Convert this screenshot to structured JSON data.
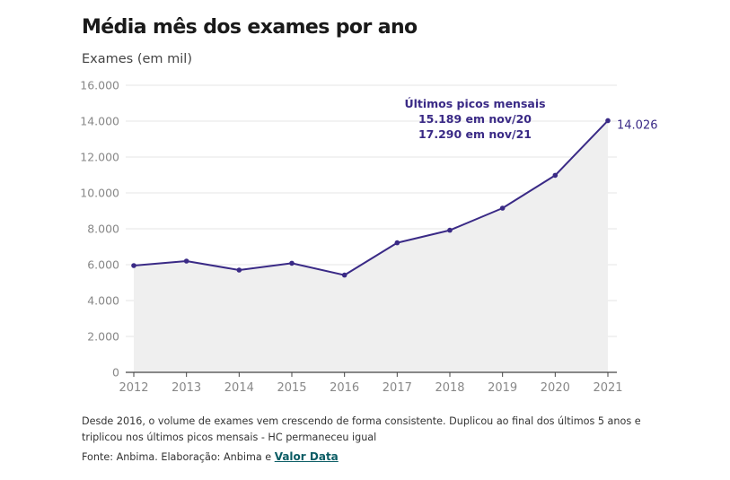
{
  "header": {
    "title": "Média mês dos exames por ano",
    "subtitle": "Exames (em mil)"
  },
  "annotation": {
    "line1": "Últimos picos mensais",
    "line2": "15.189 em nov/20",
    "line3": "17.290 em nov/21"
  },
  "footer": {
    "note": "Desde 2016, o volume de exames vem crescendo de forma consistente. Duplicou ao final dos últimos 5 anos e triplicou nos últimos picos mensais - HC permaneceu igual",
    "source_prefix": "Fonte: Anbima. Elaboração: Anbima e ",
    "source_link": "Valor Data"
  },
  "colors": {
    "line": "#3a2a86",
    "area": "#efefef",
    "grid": "#e6e6e6",
    "axis": "#444444",
    "tick_text": "#888888",
    "annotation": "#3a2a86"
  },
  "chart_data": {
    "type": "area",
    "title": "Média mês dos exames por ano",
    "ylabel": "Exames (em mil)",
    "xlabel": "",
    "x": [
      "2012",
      "2013",
      "2014",
      "2015",
      "2016",
      "2017",
      "2018",
      "2019",
      "2020",
      "2021"
    ],
    "series": [
      {
        "values": [
          5950,
          6200,
          5700,
          6080,
          5420,
          7220,
          7920,
          9150,
          10980,
          14026
        ]
      }
    ],
    "ylim": [
      0,
      16000
    ],
    "yticks": [
      0,
      2000,
      4000,
      6000,
      8000,
      10000,
      12000,
      14000,
      16000
    ],
    "ytick_labels": [
      "0",
      "2.000",
      "4.000",
      "6.000",
      "8.000",
      "10.000",
      "12.000",
      "14.000",
      "16.000"
    ],
    "last_value_label": "14.026",
    "grid": true
  }
}
